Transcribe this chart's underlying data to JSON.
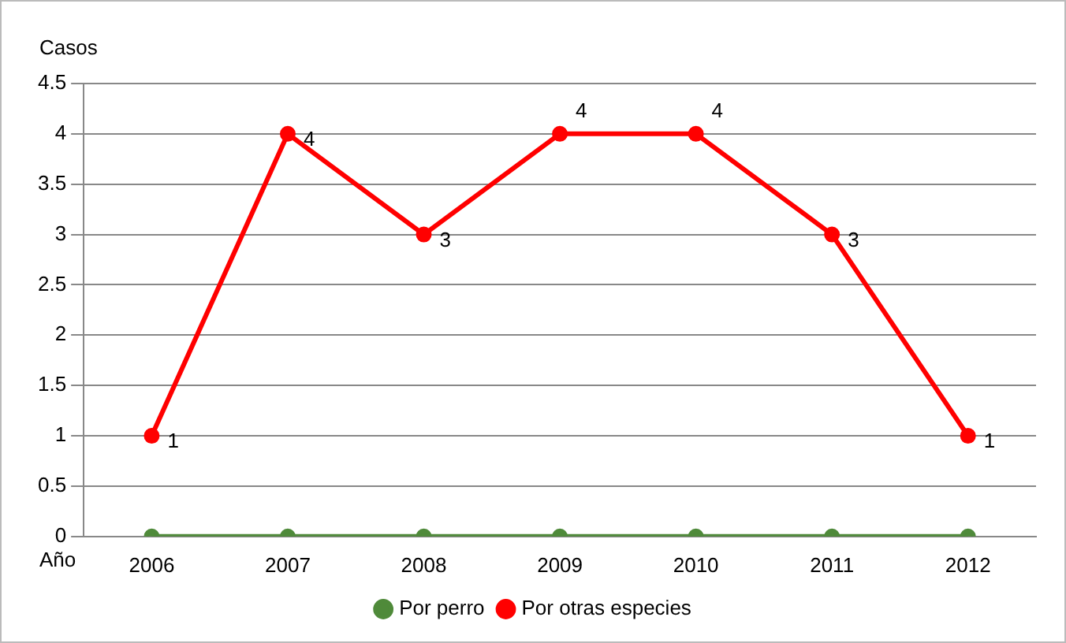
{
  "chart_data": {
    "type": "line",
    "xlabel": "Año",
    "ylabel": "Casos",
    "categories": [
      "2006",
      "2007",
      "2008",
      "2009",
      "2010",
      "2011",
      "2012"
    ],
    "series": [
      {
        "name": "Por perro",
        "color": "#4f8a3a",
        "values": [
          0,
          0,
          0,
          0,
          0,
          0,
          0
        ]
      },
      {
        "name": "Por otras especies",
        "color": "#ff0000",
        "values": [
          1,
          4,
          3,
          4,
          4,
          3,
          1
        ],
        "value_labels": [
          "1",
          "4",
          "3",
          "4",
          "4",
          "3",
          "1"
        ]
      }
    ],
    "ylim": [
      0,
      4.5
    ],
    "yticks": [
      0,
      0.5,
      1,
      1.5,
      2,
      2.5,
      3,
      3.5,
      4,
      4.5
    ],
    "grid": "y",
    "legend": "bottom",
    "marker": "circle",
    "line_style": "solid"
  }
}
